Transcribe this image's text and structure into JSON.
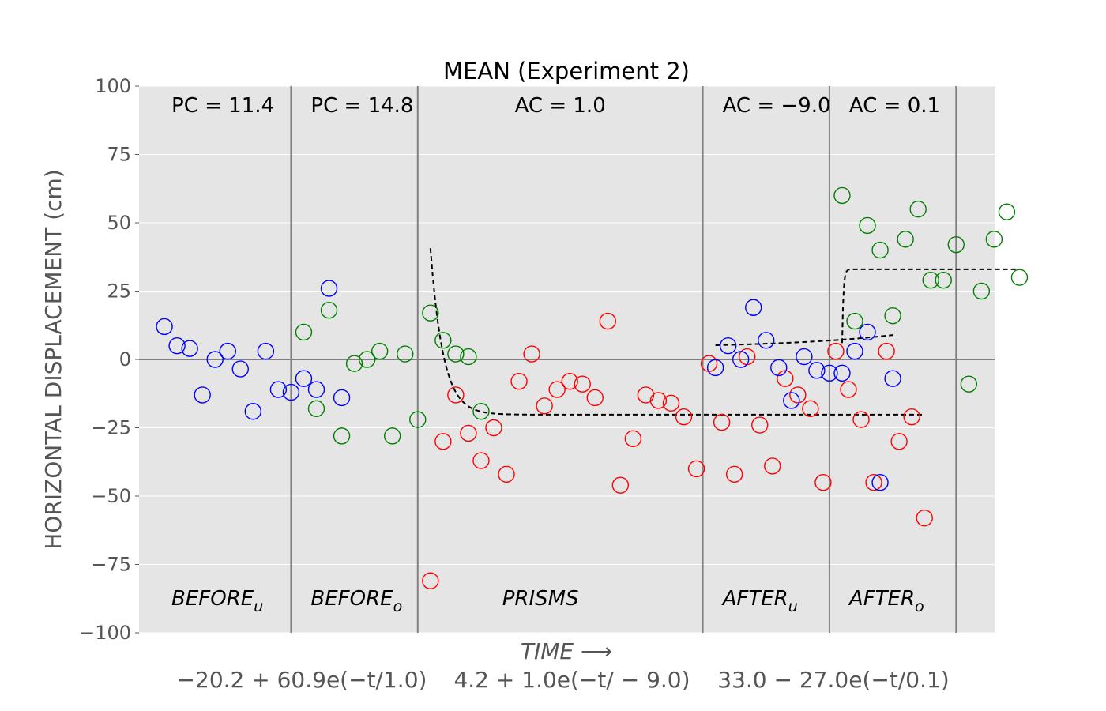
{
  "chart_data": {
    "type": "scatter",
    "title": "MEAN (Experiment 2)",
    "xlabel": "TIME ⟶",
    "ylabel": "HORIZONTAL DISPLACEMENT (cm)",
    "ylim": [
      -100,
      100
    ],
    "yticks": [
      100,
      75,
      50,
      25,
      0,
      -25,
      -50,
      -75,
      -100
    ],
    "ytick_labels": [
      "100",
      "75",
      "50",
      "25",
      "0",
      "−25",
      "−50",
      "−75",
      "−100"
    ],
    "grid": true,
    "background": "#e5e5e5",
    "segments": [
      {
        "name": "BEFORE",
        "subscript": "u",
        "stat_name": "PC",
        "stat_value": "11.4",
        "stat_text": "PC = 11.4",
        "color": "#0000ff",
        "x_range": [
          0,
          11
        ],
        "values": [
          12,
          5,
          4,
          -13,
          0,
          3,
          -3.5,
          -19,
          3,
          -11,
          -12,
          -7,
          -11,
          26,
          -14
        ]
      },
      {
        "name": "BEFORE",
        "subscript": "o",
        "stat_name": "PC",
        "stat_value": "14.8",
        "stat_text": "PC = 14.8",
        "color": "#008000",
        "x_range": [
          11,
          21
        ],
        "values": [
          10,
          -18,
          18,
          -28,
          -1.5,
          0,
          3,
          -28,
          2,
          -22,
          17,
          7,
          2,
          1,
          -19
        ]
      },
      {
        "name": "PRISMS",
        "subscript": "",
        "stat_name": "AC",
        "stat_value": "1.0",
        "stat_text": "AC = 1.0",
        "color": "#ff0000",
        "x_range": [
          21,
          43.5
        ],
        "values": [
          -81,
          -30,
          -13,
          -27,
          -37,
          -25,
          -42,
          -8,
          2,
          -17,
          -11,
          -8,
          -9,
          -14,
          14,
          -46,
          -29,
          -13,
          -15,
          -16,
          -21,
          -40,
          -1.5,
          -23,
          -42,
          1,
          -24,
          -39,
          -7,
          -13,
          -18,
          -45,
          3,
          -11,
          -22,
          -45,
          3,
          -30,
          -21,
          -58
        ],
        "fit": {
          "formula": "−20.2 + 60.9e(−t/1.0)",
          "a": -20.2,
          "b": 60.9,
          "tau": 1.0
        }
      },
      {
        "name": "AFTER",
        "subscript": "u",
        "stat_name": "AC",
        "stat_value": "−9.0",
        "stat_text": "AC = −9.0",
        "color": "#0000ff",
        "x_range": [
          43.5,
          53.5
        ],
        "values": [
          -3,
          5,
          0,
          19,
          7,
          -3,
          -15,
          1,
          -4,
          -5,
          -5,
          3,
          10,
          -45,
          -7
        ],
        "fit": {
          "formula": "4.2 + 1.0e(−t/ − 9.0)",
          "a": 4.2,
          "b": 1.0,
          "tau": -9.0
        }
      },
      {
        "name": "AFTER",
        "subscript": "o",
        "stat_name": "AC",
        "stat_value": "0.1",
        "stat_text": "AC = 0.1",
        "color": "#008000",
        "x_range": [
          53.5,
          63.5
        ],
        "values": [
          60,
          14,
          49,
          40,
          16,
          44,
          55,
          29,
          29,
          42,
          -9,
          25,
          44,
          54,
          30
        ],
        "fit": {
          "formula": "33.0 − 27.0e(−t/0.1)",
          "a": 33.0,
          "b": -27.0,
          "tau": 0.1
        }
      }
    ],
    "fit_formulas": [
      "−20.2 + 60.9e(−t/1.0)",
      "4.2 + 1.0e(−t/ − 9.0)",
      "33.0 − 27.0e(−t/0.1)"
    ]
  }
}
